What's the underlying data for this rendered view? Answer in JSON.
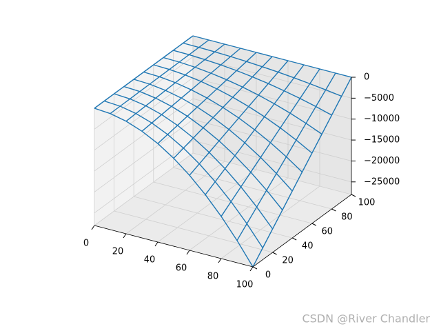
{
  "chart_data": {
    "type": "wireframe",
    "x": [
      0,
      10,
      20,
      30,
      40,
      50,
      60,
      70,
      80,
      90,
      100
    ],
    "y": [
      0,
      10,
      20,
      30,
      40,
      50,
      60,
      70,
      80,
      90,
      100
    ],
    "z": [
      [
        0,
        -280,
        -1120,
        -2520,
        -4480,
        -7000,
        -10080,
        -13720,
        -17920,
        -22680,
        -28000
      ],
      [
        0,
        -252,
        -1008,
        -2268,
        -4032,
        -6300,
        -9072,
        -12348,
        -16128,
        -20412,
        -25200
      ],
      [
        0,
        -224,
        -896,
        -2016,
        -3584,
        -5600,
        -8064,
        -10976,
        -14336,
        -18144,
        -22400
      ],
      [
        0,
        -196,
        -784,
        -1764,
        -3136,
        -4900,
        -7056,
        -9604,
        -12544,
        -15876,
        -19600
      ],
      [
        0,
        -168,
        -672,
        -1512,
        -2688,
        -4200,
        -6048,
        -8232,
        -10752,
        -13608,
        -16800
      ],
      [
        0,
        -140,
        -560,
        -1260,
        -2240,
        -3500,
        -5040,
        -6860,
        -8960,
        -11340,
        -14000
      ],
      [
        0,
        -112,
        -448,
        -1008,
        -1792,
        -2800,
        -4032,
        -5488,
        -7168,
        -9072,
        -11200
      ],
      [
        0,
        -84,
        -336,
        -756,
        -1344,
        -2100,
        -3024,
        -4116,
        -5376,
        -6804,
        -8400
      ],
      [
        0,
        -56,
        -224,
        -504,
        -896,
        -1400,
        -2016,
        -2744,
        -3584,
        -4536,
        -5600
      ],
      [
        0,
        -28,
        -112,
        -252,
        -448,
        -700,
        -1008,
        -1372,
        -1792,
        -2268,
        -2800
      ],
      [
        0,
        0,
        0,
        0,
        0,
        0,
        0,
        0,
        0,
        0,
        0
      ]
    ],
    "color": "#1f77b4",
    "xlim": [
      0,
      100
    ],
    "ylim": [
      0,
      100
    ],
    "zlim": [
      -28000,
      0
    ],
    "xticks": [
      0,
      20,
      40,
      60,
      80,
      100
    ],
    "yticks": [
      0,
      20,
      40,
      60,
      80,
      100
    ],
    "zticks": [
      0,
      {
        "value": -5000,
        "label": "−5000"
      },
      {
        "value": -10000,
        "label": "−10000"
      },
      {
        "value": -15000,
        "label": "−15000"
      },
      {
        "value": -20000,
        "label": "−20000"
      },
      {
        "value": -25000,
        "label": "−25000"
      }
    ],
    "grid": true,
    "watermark": "CSDN @River Chandler"
  }
}
